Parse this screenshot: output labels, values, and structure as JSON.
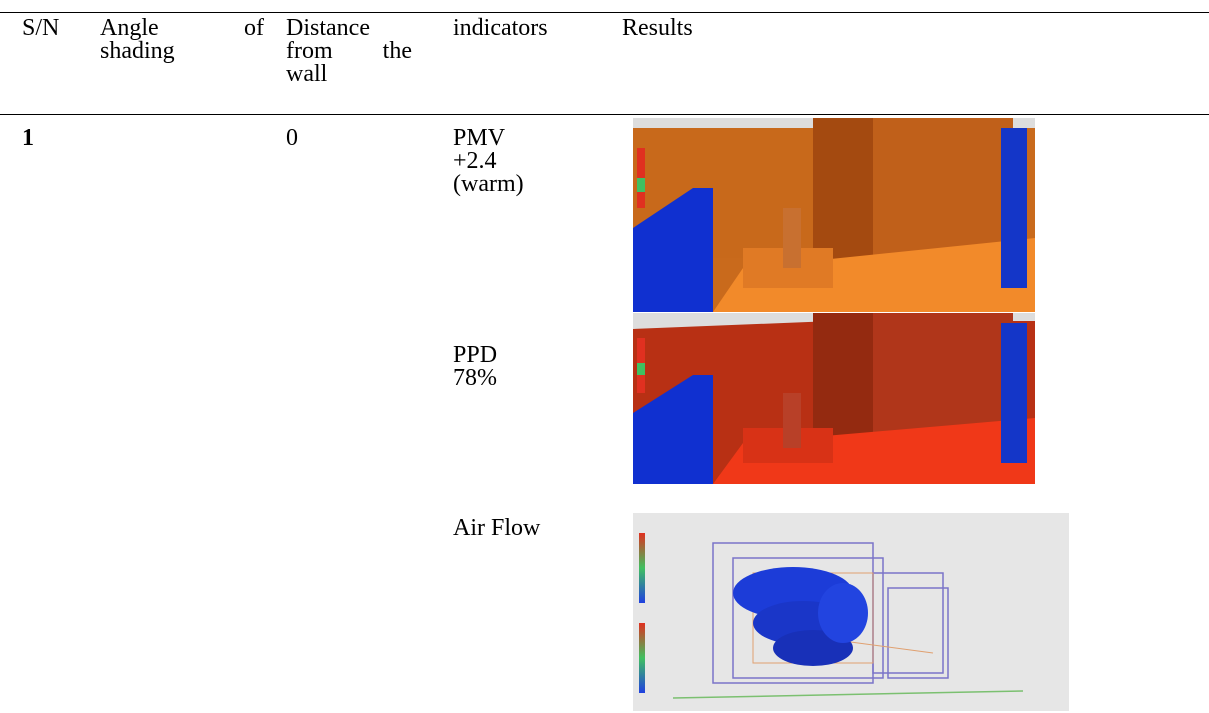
{
  "table": {
    "header": [
      "S/N",
      "Angle of shading",
      "Distance from the wall",
      "indicators",
      "Results"
    ],
    "rows": [
      {
        "sn": "1",
        "distance": "0",
        "indicators": [
          {
            "name": "PMV",
            "value": "+2.4",
            "note": "(warm)"
          },
          {
            "name": "PPD",
            "value": "78%"
          },
          {
            "name": "Air Flow"
          }
        ]
      }
    ]
  }
}
